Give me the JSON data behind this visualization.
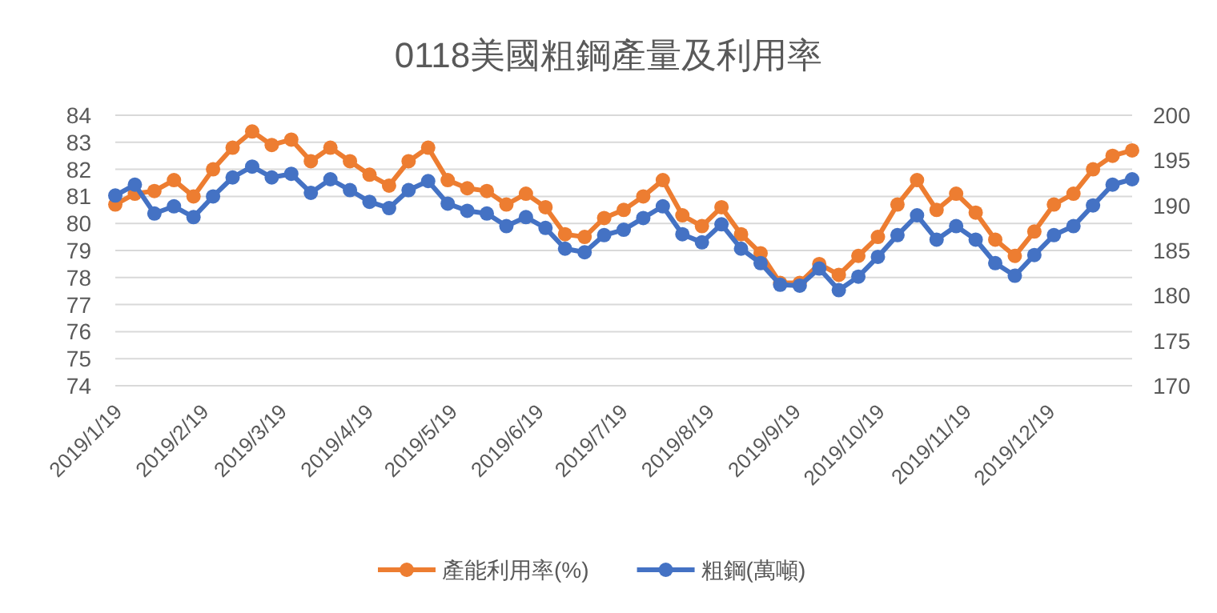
{
  "chart_data": {
    "type": "line",
    "title": "0118美國粗鋼產量及利用率",
    "x": [
      "2019-01-19",
      "2019-01-26",
      "2019-02-02",
      "2019-02-09",
      "2019-02-16",
      "2019-02-23",
      "2019-03-02",
      "2019-03-09",
      "2019-03-16",
      "2019-03-23",
      "2019-03-30",
      "2019-04-06",
      "2019-04-13",
      "2019-04-20",
      "2019-04-27",
      "2019-05-04",
      "2019-05-11",
      "2019-05-18",
      "2019-05-25",
      "2019-06-01",
      "2019-06-08",
      "2019-06-15",
      "2019-06-22",
      "2019-06-29",
      "2019-07-06",
      "2019-07-13",
      "2019-07-20",
      "2019-07-27",
      "2019-08-03",
      "2019-08-10",
      "2019-08-17",
      "2019-08-24",
      "2019-08-31",
      "2019-09-07",
      "2019-09-14",
      "2019-09-21",
      "2019-09-28",
      "2019-10-05",
      "2019-10-12",
      "2019-10-19",
      "2019-10-26",
      "2019-11-02",
      "2019-11-09",
      "2019-11-16",
      "2019-11-23",
      "2019-11-30",
      "2019-12-07",
      "2019-12-14",
      "2019-12-21",
      "2019-12-28",
      "2020-01-04",
      "2020-01-11",
      "2020-01-18"
    ],
    "series": [
      {
        "name": "產能利用率(%)",
        "color": "#ed7d31",
        "values": [
          80.7,
          81.1,
          81.2,
          81.6,
          81.0,
          82.0,
          82.8,
          83.4,
          82.9,
          83.1,
          82.3,
          82.8,
          82.3,
          81.8,
          81.4,
          82.3,
          82.8,
          81.6,
          81.3,
          81.2,
          80.7,
          81.1,
          80.6,
          79.6,
          79.5,
          80.2,
          80.5,
          81.0,
          81.6,
          80.3,
          79.9,
          80.6,
          79.6,
          78.9,
          77.8,
          77.8,
          78.5,
          78.1,
          78.8,
          79.5,
          80.7,
          81.6,
          80.5,
          81.1,
          80.4,
          79.4,
          78.8,
          79.7,
          80.7,
          81.1,
          82.0,
          82.5,
          82.7
        ]
      },
      {
        "name": "粗鋼(萬噸)",
        "color": "#4472c4",
        "axis": "y2",
        "values": [
          191.1,
          192.3,
          189.1,
          189.9,
          188.7,
          191.0,
          193.1,
          194.3,
          193.1,
          193.5,
          191.4,
          192.9,
          191.7,
          190.4,
          189.7,
          191.7,
          192.7,
          190.2,
          189.4,
          189.1,
          187.7,
          188.7,
          187.5,
          185.2,
          184.8,
          186.7,
          187.3,
          188.6,
          189.9,
          186.8,
          185.9,
          187.9,
          185.2,
          183.6,
          181.2,
          181.1,
          183.0,
          180.6,
          182.1,
          184.3,
          186.7,
          188.9,
          186.2,
          187.7,
          186.2,
          183.6,
          182.2,
          184.5,
          186.7,
          187.7,
          190.0,
          192.3,
          192.9
        ]
      }
    ],
    "xlim": [
      "2019-01-19",
      "2020-01-18"
    ],
    "xticks": [
      {
        "value": "2019-01-19",
        "label": "2019/1/19"
      },
      {
        "value": "2019-02-19",
        "label": "2019/2/19"
      },
      {
        "value": "2019-03-19",
        "label": "2019/3/19"
      },
      {
        "value": "2019-04-19",
        "label": "2019/4/19"
      },
      {
        "value": "2019-05-19",
        "label": "2019/5/19"
      },
      {
        "value": "2019-06-19",
        "label": "2019/6/19"
      },
      {
        "value": "2019-07-19",
        "label": "2019/7/19"
      },
      {
        "value": "2019-08-19",
        "label": "2019/8/19"
      },
      {
        "value": "2019-09-19",
        "label": "2019/9/19"
      },
      {
        "value": "2019-10-19",
        "label": "2019/10/19"
      },
      {
        "value": "2019-11-19",
        "label": "2019/11/19"
      },
      {
        "value": "2019-12-19",
        "label": "2019/12/19"
      }
    ],
    "ylim": [
      74,
      84
    ],
    "yticks": [
      74,
      75,
      76,
      77,
      78,
      79,
      80,
      81,
      82,
      83,
      84
    ],
    "y2lim": [
      170,
      200
    ],
    "y2ticks": [
      170,
      175,
      180,
      185,
      190,
      195,
      200
    ],
    "grid": "y",
    "legend": "bottom",
    "marker": "circle",
    "line_style": "solid"
  }
}
